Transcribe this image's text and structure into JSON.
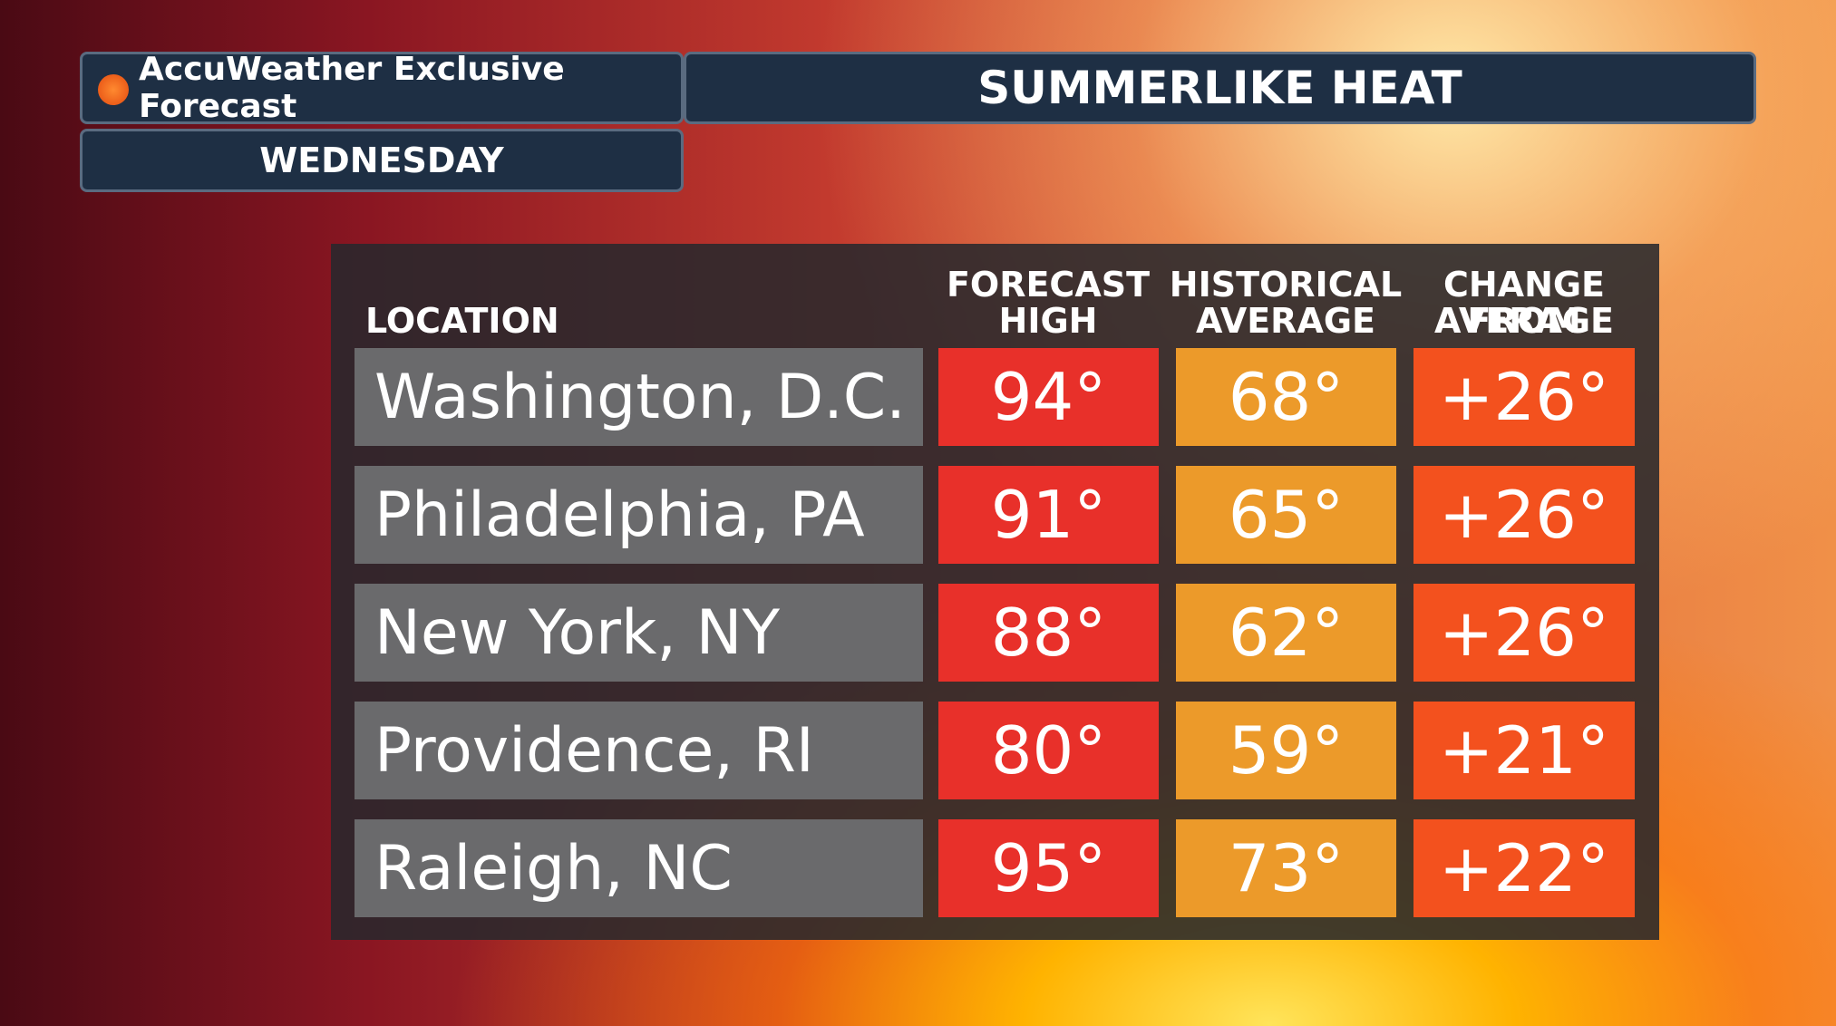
{
  "header": {
    "brand": "AccuWeather Exclusive Forecast",
    "title": "SUMMERLIKE HEAT",
    "day": "WEDNESDAY"
  },
  "table": {
    "columns": [
      [
        "LOCATION"
      ],
      [
        "FORECAST",
        "HIGH"
      ],
      [
        "HISTORICAL",
        "AVERAGE"
      ],
      [
        "CHANGE FROM",
        "AVERAGE"
      ]
    ],
    "rows": [
      [
        "Washington, D.C.",
        "94°",
        "68°",
        "+26°"
      ],
      [
        "Philadelphia, PA",
        "91°",
        "65°",
        "+26°"
      ],
      [
        "New York, NY",
        "88°",
        "62°",
        "+26°"
      ],
      [
        "Providence, RI",
        "80°",
        "59°",
        "+21°"
      ],
      [
        "Raleigh, NC",
        "95°",
        "73°",
        "+22°"
      ]
    ]
  }
}
